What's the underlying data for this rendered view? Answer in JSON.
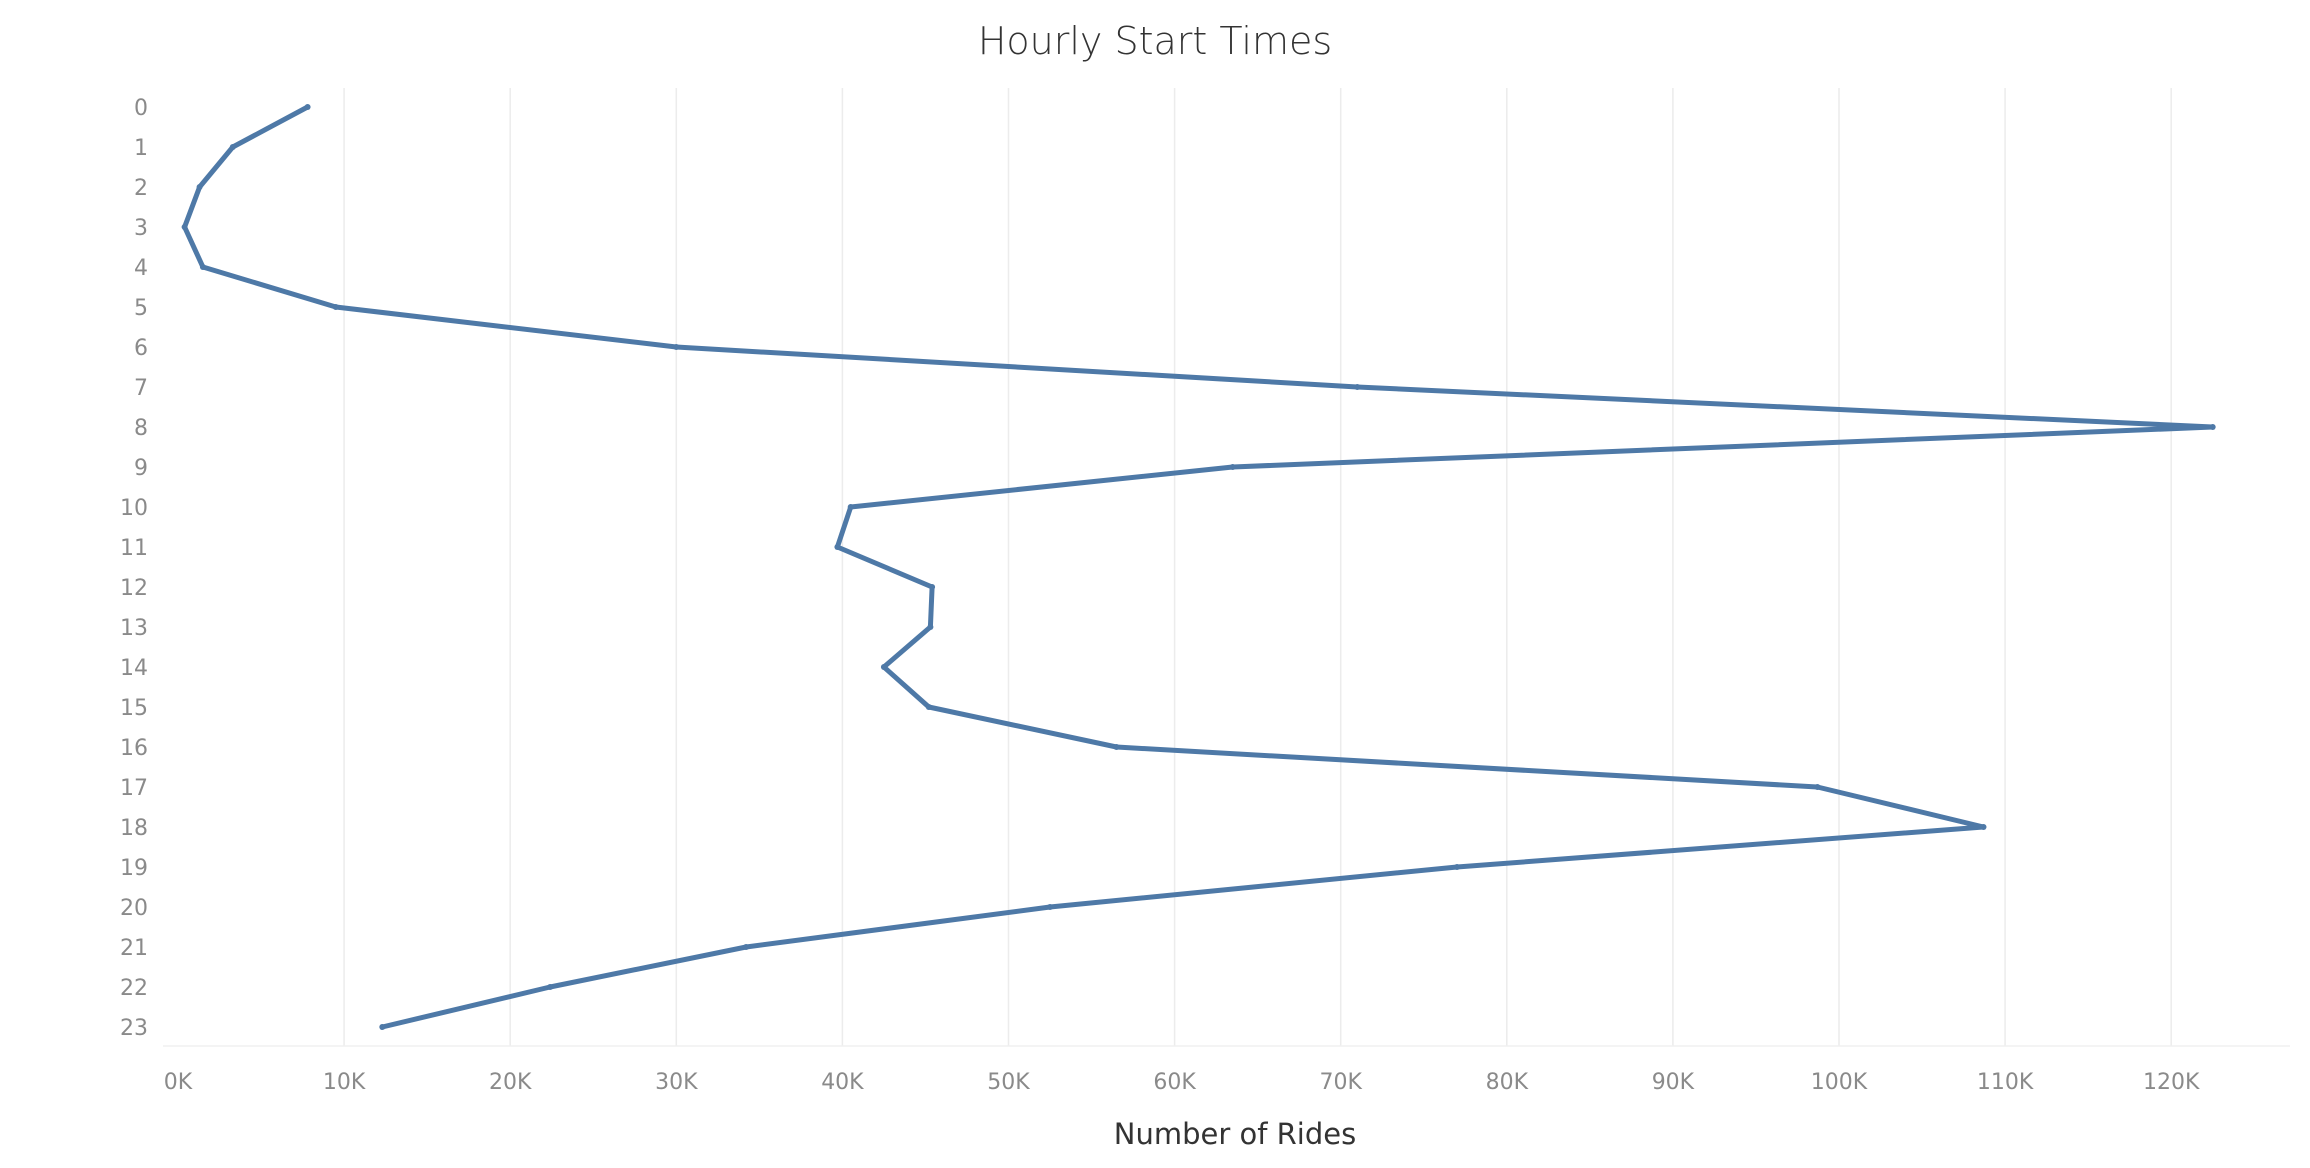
{
  "chart_data": {
    "type": "line",
    "title": "Hourly Start Times",
    "xlabel": "Number of Rides",
    "ylabel": "",
    "orientation": "horizontal-values",
    "xlim": [
      0,
      127000
    ],
    "x_ticks": [
      0,
      10000,
      20000,
      30000,
      40000,
      50000,
      60000,
      70000,
      80000,
      90000,
      100000,
      110000,
      120000
    ],
    "x_tick_labels": [
      "0K",
      "10K",
      "20K",
      "30K",
      "40K",
      "50K",
      "60K",
      "70K",
      "80K",
      "90K",
      "100K",
      "110K",
      "120K"
    ],
    "categories": [
      "0",
      "1",
      "2",
      "3",
      "4",
      "5",
      "6",
      "7",
      "8",
      "9",
      "10",
      "11",
      "12",
      "13",
      "14",
      "15",
      "16",
      "17",
      "18",
      "19",
      "20",
      "21",
      "22",
      "23"
    ],
    "series": [
      {
        "values": [
          7800,
          3300,
          1300,
          400,
          1500,
          9500,
          30000,
          71000,
          122500,
          63500,
          40500,
          39700,
          45400,
          45300,
          42500,
          45200,
          56500,
          98700,
          108700,
          77000,
          52500,
          34200,
          22400,
          12300
        ],
        "color": "#4e79a7"
      }
    ],
    "grid": {
      "vertical": true,
      "horizontal": false,
      "color": "#ececec"
    }
  }
}
